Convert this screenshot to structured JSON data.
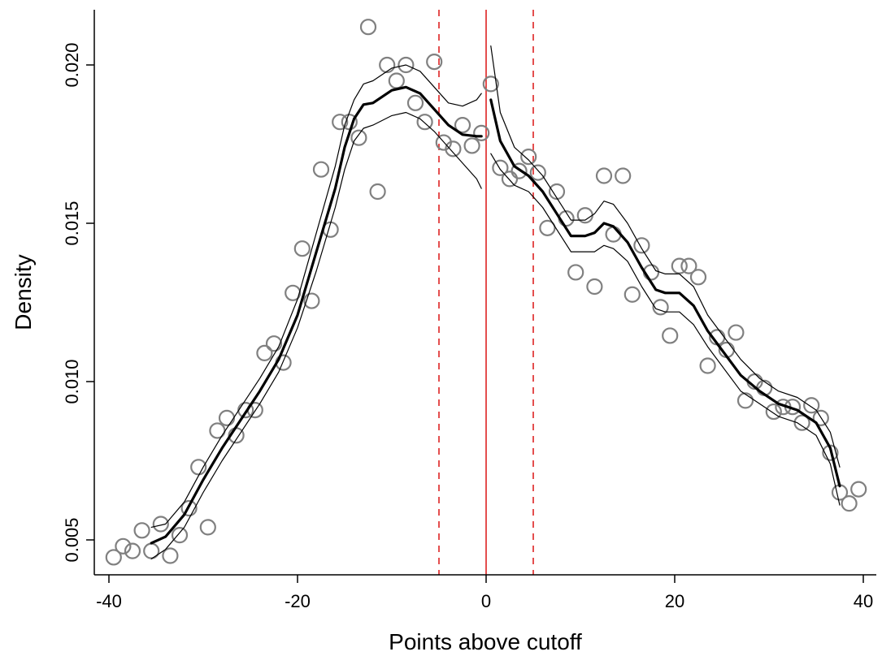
{
  "chart_data": {
    "type": "scatter",
    "title": "",
    "xlabel": "Points above cutoff",
    "ylabel": "Density",
    "xlim": [
      -40,
      40
    ],
    "ylim": [
      0.004,
      0.0215
    ],
    "xticks": [
      -40,
      -20,
      0,
      20,
      40
    ],
    "xtick_labels": [
      "-40",
      "-20",
      "0",
      "20",
      "40"
    ],
    "yticks": [
      0.005,
      0.01,
      0.015,
      0.02
    ],
    "ytick_labels": [
      "0.005",
      "0.010",
      "0.015",
      "0.020"
    ],
    "grid": false,
    "cutoff_line": {
      "x": 0,
      "color": "#dd2222",
      "style": "solid"
    },
    "bandwidth_lines": [
      {
        "x": -5,
        "color": "#dd2222",
        "style": "dashed"
      },
      {
        "x": 5,
        "color": "#dd2222",
        "style": "dashed"
      }
    ],
    "series": [
      {
        "kind": "points",
        "marker": "hollow-circle",
        "color": "#808080",
        "x": [
          -39.5,
          -38.5,
          -37.5,
          -36.5,
          -35.5,
          -34.5,
          -33.5,
          -32.5,
          -31.5,
          -30.5,
          -29.5,
          -28.5,
          -27.5,
          -26.5,
          -25.5,
          -24.5,
          -23.5,
          -22.5,
          -21.5,
          -20.5,
          -19.5,
          -18.5,
          -17.5,
          -16.5,
          -15.5,
          -14.5,
          -13.5,
          -12.5,
          -11.5,
          -10.5,
          -9.5,
          -8.5,
          -7.5,
          -6.5,
          -5.5,
          -4.5,
          -3.5,
          -2.5,
          -1.5,
          -0.5,
          0.5,
          1.5,
          2.5,
          3.5,
          4.5,
          5.5,
          6.5,
          7.5,
          8.5,
          9.5,
          10.5,
          11.5,
          12.5,
          13.5,
          14.5,
          15.5,
          16.5,
          17.5,
          18.5,
          19.5,
          20.5,
          21.5,
          22.5,
          23.5,
          24.5,
          25.5,
          26.5,
          27.5,
          28.5,
          29.5,
          30.5,
          31.5,
          32.5,
          33.5,
          34.5,
          35.5,
          36.5,
          37.5,
          38.5,
          39.5
        ],
        "y": [
          0.00445,
          0.0048,
          0.00465,
          0.0053,
          0.00465,
          0.0055,
          0.0045,
          0.00515,
          0.006,
          0.0073,
          0.0054,
          0.00845,
          0.00885,
          0.0083,
          0.0091,
          0.0091,
          0.0109,
          0.0112,
          0.0106,
          0.0128,
          0.0142,
          0.01255,
          0.0167,
          0.0148,
          0.0182,
          0.0182,
          0.0177,
          0.0212,
          0.016,
          0.02,
          0.0195,
          0.02,
          0.0188,
          0.0182,
          0.0201,
          0.01755,
          0.01735,
          0.0181,
          0.01745,
          0.01785,
          0.0194,
          0.01675,
          0.0164,
          0.01665,
          0.0171,
          0.0166,
          0.01485,
          0.016,
          0.01515,
          0.01345,
          0.01525,
          0.013,
          0.0165,
          0.01465,
          0.0165,
          0.01275,
          0.0143,
          0.01345,
          0.01235,
          0.01145,
          0.01365,
          0.01365,
          0.0133,
          0.0105,
          0.0114,
          0.011,
          0.01155,
          0.0094,
          0.01,
          0.0098,
          0.00905,
          0.0092,
          0.0092,
          0.0087,
          0.00925,
          0.00885,
          0.00775,
          0.0065,
          0.00615,
          0.0066
        ]
      },
      {
        "kind": "fit",
        "name": "left-fit",
        "color": "#000000",
        "x": [
          -35.5,
          -34,
          -32,
          -30,
          -28,
          -26,
          -24,
          -22,
          -20,
          -18,
          -16,
          -15,
          -14,
          -13,
          -12,
          -10,
          -8.5,
          -7,
          -5.5,
          -4,
          -2.5,
          -1,
          -0.5
        ],
        "y": [
          0.0049,
          0.0051,
          0.0058,
          0.0069,
          0.0079,
          0.0088,
          0.0097,
          0.0107,
          0.0121,
          0.0141,
          0.0161,
          0.0174,
          0.0183,
          0.01875,
          0.0188,
          0.0192,
          0.0193,
          0.0191,
          0.0186,
          0.0181,
          0.0178,
          0.01775,
          0.01775
        ]
      },
      {
        "kind": "ci-upper",
        "name": "left-fit-upper",
        "color": "#000000",
        "x": [
          -35.5,
          -34,
          -32,
          -30,
          -28,
          -26,
          -24,
          -22,
          -20,
          -18,
          -16,
          -15,
          -14,
          -13,
          -12,
          -10,
          -8.5,
          -7,
          -5.5,
          -4,
          -2.5,
          -1,
          -0.5
        ],
        "y": [
          0.0054,
          0.0055,
          0.0062,
          0.0073,
          0.0083,
          0.0092,
          0.0101,
          0.0111,
          0.0126,
          0.0147,
          0.0168,
          0.0181,
          0.0189,
          0.0194,
          0.0195,
          0.0199,
          0.02,
          0.0198,
          0.0193,
          0.0188,
          0.0187,
          0.0189,
          0.0191
        ]
      },
      {
        "kind": "ci-lower",
        "name": "left-fit-lower",
        "color": "#000000",
        "x": [
          -35.5,
          -34,
          -32,
          -30,
          -28,
          -26,
          -24,
          -22,
          -20,
          -18,
          -16,
          -15,
          -14,
          -13,
          -12,
          -10,
          -8.5,
          -7,
          -5.5,
          -4,
          -2.5,
          -1,
          -0.5
        ],
        "y": [
          0.0044,
          0.0047,
          0.0054,
          0.0065,
          0.0075,
          0.0084,
          0.0093,
          0.0103,
          0.0117,
          0.0135,
          0.0155,
          0.0167,
          0.0176,
          0.018,
          0.0181,
          0.0184,
          0.0185,
          0.0183,
          0.0179,
          0.0174,
          0.0169,
          0.0164,
          0.0161
        ]
      },
      {
        "kind": "fit",
        "name": "right-fit",
        "color": "#000000",
        "x": [
          0.5,
          1.5,
          3,
          4.5,
          6,
          7.5,
          9,
          10.5,
          11.5,
          12.5,
          13.5,
          15,
          16.5,
          18,
          19,
          20.5,
          22,
          23.5,
          25,
          27,
          29,
          31,
          33,
          35,
          36.5,
          37.5
        ],
        "y": [
          0.0189,
          0.0176,
          0.0168,
          0.0165,
          0.016,
          0.0153,
          0.0146,
          0.0146,
          0.0147,
          0.015,
          0.0149,
          0.0144,
          0.0136,
          0.0129,
          0.0128,
          0.0128,
          0.0124,
          0.0116,
          0.011,
          0.0102,
          0.0097,
          0.0093,
          0.0091,
          0.0087,
          0.0079,
          0.0067
        ]
      },
      {
        "kind": "ci-upper",
        "name": "right-fit-upper",
        "color": "#000000",
        "x": [
          0.5,
          1.5,
          3,
          4.5,
          6,
          7.5,
          9,
          10.5,
          11.5,
          12.5,
          13.5,
          15,
          16.5,
          18,
          19,
          20.5,
          22,
          23.5,
          25,
          27,
          29,
          31,
          33,
          35,
          36.5,
          37.5
        ],
        "y": [
          0.0206,
          0.0185,
          0.0174,
          0.017,
          0.0165,
          0.0158,
          0.0151,
          0.0151,
          0.0153,
          0.0157,
          0.0156,
          0.015,
          0.0142,
          0.0135,
          0.0134,
          0.0134,
          0.013,
          0.0121,
          0.0115,
          0.0107,
          0.0101,
          0.0097,
          0.0095,
          0.0091,
          0.0084,
          0.0073
        ]
      },
      {
        "kind": "ci-lower",
        "name": "right-fit-lower",
        "color": "#000000",
        "x": [
          0.5,
          1.5,
          3,
          4.5,
          6,
          7.5,
          9,
          10.5,
          11.5,
          12.5,
          13.5,
          15,
          16.5,
          18,
          19,
          20.5,
          22,
          23.5,
          25,
          27,
          29,
          31,
          33,
          35,
          36.5,
          37.5
        ],
        "y": [
          0.0172,
          0.0167,
          0.0162,
          0.016,
          0.0155,
          0.0148,
          0.0141,
          0.0141,
          0.0141,
          0.0143,
          0.0142,
          0.0138,
          0.013,
          0.0123,
          0.0122,
          0.0122,
          0.0118,
          0.0111,
          0.0105,
          0.0097,
          0.0093,
          0.0089,
          0.0087,
          0.0083,
          0.0074,
          0.0061
        ]
      }
    ]
  }
}
